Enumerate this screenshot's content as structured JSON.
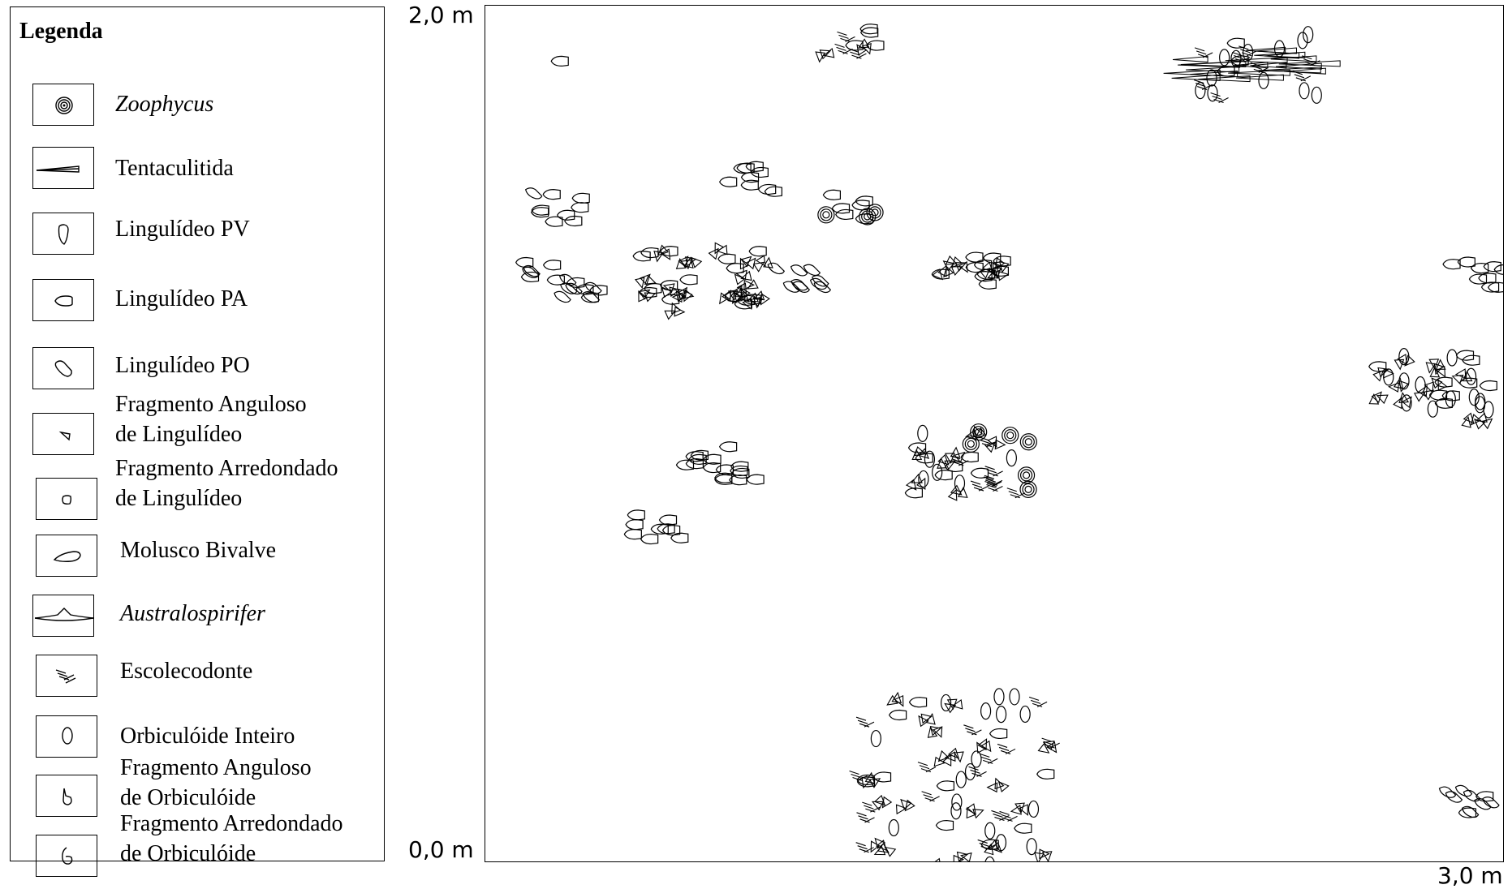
{
  "legend": {
    "title": "Legenda",
    "items": [
      {
        "id": "zoophycus",
        "icon": "spiral-icon",
        "label": "Zoophycus",
        "italic": true
      },
      {
        "id": "tentaculitida",
        "icon": "cone-icon",
        "label": "Tentaculitida",
        "italic": false
      },
      {
        "id": "lingulideo-pv",
        "icon": "shell-pv-icon",
        "label": "Lingulídeo PV",
        "italic": false
      },
      {
        "id": "lingulideo-pa",
        "icon": "shell-pa-icon",
        "label": "Lingulídeo PA",
        "italic": false
      },
      {
        "id": "lingulideo-po",
        "icon": "shell-po-icon",
        "label": "Lingulídeo PO",
        "italic": false
      },
      {
        "id": "fragmento-anguloso-lingulideo",
        "icon": "angular-fragment-icon",
        "label": "Fragmento Anguloso\nde Lingulídeo",
        "italic": false
      },
      {
        "id": "fragmento-arredondado-lingulideo",
        "icon": "rounded-fragment-icon",
        "label": "Fragmento Arredondado\n de Lingulídeo",
        "italic": false
      },
      {
        "id": "molusco-bivalve",
        "icon": "bivalve-icon",
        "label": "Molusco Bivalve",
        "italic": false
      },
      {
        "id": "australospirifer",
        "icon": "spirifer-icon",
        "label": "Australospirifer",
        "italic": true
      },
      {
        "id": "escolecodonte",
        "icon": "scolecodont-icon",
        "label": "Escolecodonte",
        "italic": false
      },
      {
        "id": "orbiculoide-inteiro",
        "icon": "orbiculoid-icon",
        "label": "Orbiculóide Inteiro",
        "italic": false
      },
      {
        "id": "fragmento-anguloso-orbiculoide",
        "icon": "angular-orbiculoid-fragment-icon",
        "label": "Fragmento Anguloso\n de Orbiculóide",
        "italic": false
      },
      {
        "id": "fragmento-arredondado-orbiculoide",
        "icon": "rounded-orbiculoid-fragment-icon",
        "label": "Fragmento Arredondado\n de Orbiculóide",
        "italic": false
      }
    ]
  },
  "axes": {
    "y_top_label": "2,0 m",
    "y_bottom_label": "0,0 m",
    "x_right_label": "3,0 m",
    "x_range_m": [
      0,
      3
    ],
    "y_range_m": [
      0,
      2
    ]
  },
  "clusters": [
    {
      "id": "top-center-small",
      "x_m": 1.08,
      "y_m": 1.92,
      "density": "low",
      "taxa": [
        "fragmento-anguloso-lingulideo",
        "lingulideo-pa",
        "escolecodonte"
      ]
    },
    {
      "id": "top-right-tentaculitid-bed",
      "x_m": 2.27,
      "y_m": 1.86,
      "density": "high",
      "taxa": [
        "tentaculitida",
        "lingulideo-pa",
        "escolecodonte",
        "orbiculoide-inteiro"
      ]
    },
    {
      "id": "upper-left-single",
      "x_m": 0.22,
      "y_m": 1.87,
      "density": "single",
      "taxa": [
        "lingulideo-pa"
      ]
    },
    {
      "id": "upper-center-left",
      "x_m": 0.77,
      "y_m": 1.6,
      "density": "low",
      "taxa": [
        "lingulideo-pa"
      ]
    },
    {
      "id": "upper-center-zoophycus",
      "x_m": 1.08,
      "y_m": 1.53,
      "density": "low",
      "taxa": [
        "lingulideo-pa",
        "zoophycus"
      ]
    },
    {
      "id": "left-cluster-1",
      "x_m": 0.21,
      "y_m": 1.53,
      "density": "low",
      "taxa": [
        "lingulideo-pa",
        "lingulideo-po"
      ]
    },
    {
      "id": "left-cluster-2",
      "x_m": 0.23,
      "y_m": 1.36,
      "density": "medium",
      "taxa": [
        "lingulideo-pa",
        "lingulideo-po"
      ]
    },
    {
      "id": "center-left-dense",
      "x_m": 0.64,
      "y_m": 1.36,
      "density": "high",
      "taxa": [
        "lingulideo-pa",
        "fragmento-anguloso-lingulideo"
      ]
    },
    {
      "id": "center-small",
      "x_m": 0.93,
      "y_m": 1.37,
      "density": "low",
      "taxa": [
        "lingulideo-po"
      ]
    },
    {
      "id": "center-right-fragments",
      "x_m": 1.45,
      "y_m": 1.38,
      "density": "medium",
      "taxa": [
        "fragmento-anguloso-lingulideo",
        "lingulideo-pa"
      ]
    },
    {
      "id": "right-edge-small",
      "x_m": 2.92,
      "y_m": 1.37,
      "density": "low",
      "taxa": [
        "lingulideo-pa"
      ]
    },
    {
      "id": "right-cluster",
      "x_m": 2.78,
      "y_m": 1.11,
      "density": "high",
      "taxa": [
        "lingulideo-pa",
        "fragmento-anguloso-lingulideo",
        "orbiculoide-inteiro"
      ]
    },
    {
      "id": "center-left-medium",
      "x_m": 0.69,
      "y_m": 0.93,
      "density": "medium",
      "taxa": [
        "lingulideo-pa"
      ]
    },
    {
      "id": "center-large",
      "x_m": 1.43,
      "y_m": 0.93,
      "density": "high",
      "taxa": [
        "lingulideo-pa",
        "fragmento-anguloso-lingulideo",
        "zoophycus",
        "orbiculoide-inteiro",
        "escolecodonte"
      ]
    },
    {
      "id": "lower-left-small",
      "x_m": 0.51,
      "y_m": 0.78,
      "density": "low",
      "taxa": [
        "lingulideo-pa"
      ]
    },
    {
      "id": "bottom-center-dense",
      "x_m": 1.38,
      "y_m": 0.18,
      "density": "very-high",
      "taxa": [
        "fragmento-anguloso-lingulideo",
        "lingulideo-pa",
        "orbiculoide-inteiro",
        "escolecodonte"
      ]
    },
    {
      "id": "bottom-right-small",
      "x_m": 2.88,
      "y_m": 0.15,
      "density": "low",
      "taxa": [
        "lingulideo-pa",
        "lingulideo-po"
      ]
    }
  ]
}
